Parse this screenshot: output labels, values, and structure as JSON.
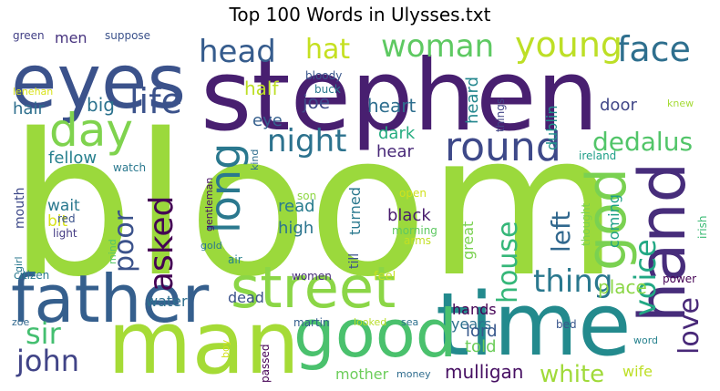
{
  "figure": {
    "title": "Top 100 Words in Ulysses.txt"
  },
  "words": [
    {
      "text": "bloom",
      "color": "#9bd93c"
    },
    {
      "text": "stephen",
      "color": "#481f70"
    },
    {
      "text": "man",
      "color": "#a5db36"
    },
    {
      "text": "time",
      "color": "#238a8d"
    },
    {
      "text": "eyes",
      "color": "#3b528b"
    },
    {
      "text": "father",
      "color": "#355f8d"
    },
    {
      "text": "good",
      "color": "#4ac16d"
    },
    {
      "text": "street",
      "color": "#8bd646"
    },
    {
      "text": "hand",
      "color": "#472d7b"
    },
    {
      "text": "god",
      "color": "#7ad151"
    },
    {
      "text": "long",
      "color": "#2a788e"
    },
    {
      "text": "day",
      "color": "#7fd34e"
    },
    {
      "text": "round",
      "color": "#3e4989"
    },
    {
      "text": "face",
      "color": "#2e6f8e"
    },
    {
      "text": "young",
      "color": "#bddf26"
    },
    {
      "text": "woman",
      "color": "#5ec962"
    },
    {
      "text": "head",
      "color": "#365c8d"
    },
    {
      "text": "life",
      "color": "#3b528b"
    },
    {
      "text": "night",
      "color": "#2c728e"
    },
    {
      "text": "voice",
      "color": "#22a884"
    },
    {
      "text": "thing",
      "color": "#2a788e"
    },
    {
      "text": "dedalus",
      "color": "#52c569"
    },
    {
      "text": "love",
      "color": "#482878"
    },
    {
      "text": "asked",
      "color": "#440154"
    },
    {
      "text": "poor",
      "color": "#3b528b"
    },
    {
      "text": "john",
      "color": "#414487"
    },
    {
      "text": "sir",
      "color": "#44bf70"
    },
    {
      "text": "left",
      "color": "#31688e"
    },
    {
      "text": "house",
      "color": "#35b779"
    },
    {
      "text": "hat",
      "color": "#c5e021"
    },
    {
      "text": "white",
      "color": "#a0da39"
    },
    {
      "text": "mulligan",
      "color": "#471063"
    },
    {
      "text": "half",
      "color": "#bddf26"
    },
    {
      "text": "joe",
      "color": "#3e4989"
    },
    {
      "text": "heart",
      "color": "#2e6e8e"
    },
    {
      "text": "big",
      "color": "#2c728e"
    },
    {
      "text": "hair",
      "color": "#2e6f8e"
    },
    {
      "text": "eye",
      "color": "#355f8d"
    },
    {
      "text": "dark",
      "color": "#27ad81"
    },
    {
      "text": "hear",
      "color": "#482878"
    },
    {
      "text": "fellow",
      "color": "#27808e"
    },
    {
      "text": "black",
      "color": "#481b6d"
    },
    {
      "text": "high",
      "color": "#2b748e"
    },
    {
      "text": "read",
      "color": "#287c8e"
    },
    {
      "text": "wait",
      "color": "#2a788e"
    },
    {
      "text": "bit",
      "color": "#d8e219"
    },
    {
      "text": "light",
      "color": "#443a83"
    },
    {
      "text": "water",
      "color": "#2e6f8e"
    },
    {
      "text": "dead",
      "color": "#3b528b"
    },
    {
      "text": "hands",
      "color": "#440154"
    },
    {
      "text": "place",
      "color": "#8bd646"
    },
    {
      "text": "years",
      "color": "#2d708e"
    },
    {
      "text": "lord",
      "color": "#38588c"
    },
    {
      "text": "told",
      "color": "#6ccd5a"
    },
    {
      "text": "mother",
      "color": "#6ccd5a"
    },
    {
      "text": "wife",
      "color": "#bddf26"
    },
    {
      "text": "men",
      "color": "#46327e"
    },
    {
      "text": "green",
      "color": "#424086"
    },
    {
      "text": "suppose",
      "color": "#3b528b"
    },
    {
      "text": "bloody",
      "color": "#39568c"
    },
    {
      "text": "buck",
      "color": "#2a788e"
    },
    {
      "text": "lenehan",
      "color": "#d8e219"
    },
    {
      "text": "heard",
      "color": "#24878e"
    },
    {
      "text": "things",
      "color": "#414487"
    },
    {
      "text": "dublin",
      "color": "#20928c"
    },
    {
      "text": "door",
      "color": "#404688"
    },
    {
      "text": "knew",
      "color": "#a5db36"
    },
    {
      "text": "mouth",
      "color": "#3e4989"
    },
    {
      "text": "watch",
      "color": "#2a788e"
    },
    {
      "text": "kind",
      "color": "#2e6e8e"
    },
    {
      "text": "turned",
      "color": "#2a788e"
    },
    {
      "text": "son",
      "color": "#8fd744"
    },
    {
      "text": "open",
      "color": "#d0e11c"
    },
    {
      "text": "great",
      "color": "#7ad151"
    },
    {
      "text": "coming",
      "color": "#1fa088"
    },
    {
      "text": "ireland",
      "color": "#1f9f88"
    },
    {
      "text": "irish",
      "color": "#3bbb75"
    },
    {
      "text": "thought",
      "color": "#7ad151"
    },
    {
      "text": "red",
      "color": "#3b528b"
    },
    {
      "text": "gentleman",
      "color": "#471063"
    },
    {
      "text": "till",
      "color": "#3b528b"
    },
    {
      "text": "morning",
      "color": "#5ec962"
    },
    {
      "text": "arms",
      "color": "#c2df23"
    },
    {
      "text": "girl",
      "color": "#2a788e"
    },
    {
      "text": "gold",
      "color": "#2a788e"
    },
    {
      "text": "mind",
      "color": "#56c667"
    },
    {
      "text": "air",
      "color": "#26818e"
    },
    {
      "text": "citizen",
      "color": "#29798e"
    },
    {
      "text": "women",
      "color": "#472d7b"
    },
    {
      "text": "feel",
      "color": "#c5e021"
    },
    {
      "text": "power",
      "color": "#440154"
    },
    {
      "text": "zoe",
      "color": "#31688e"
    },
    {
      "text": "martin",
      "color": "#355f8d"
    },
    {
      "text": "looked",
      "color": "#b8de29"
    },
    {
      "text": "sea",
      "color": "#2d708e"
    },
    {
      "text": "bed",
      "color": "#39568c"
    },
    {
      "text": "boy",
      "color": "#d2e21b"
    },
    {
      "text": "passed",
      "color": "#440154"
    },
    {
      "text": "money",
      "color": "#2f6c8e"
    },
    {
      "text": "word",
      "color": "#26828e"
    }
  ]
}
